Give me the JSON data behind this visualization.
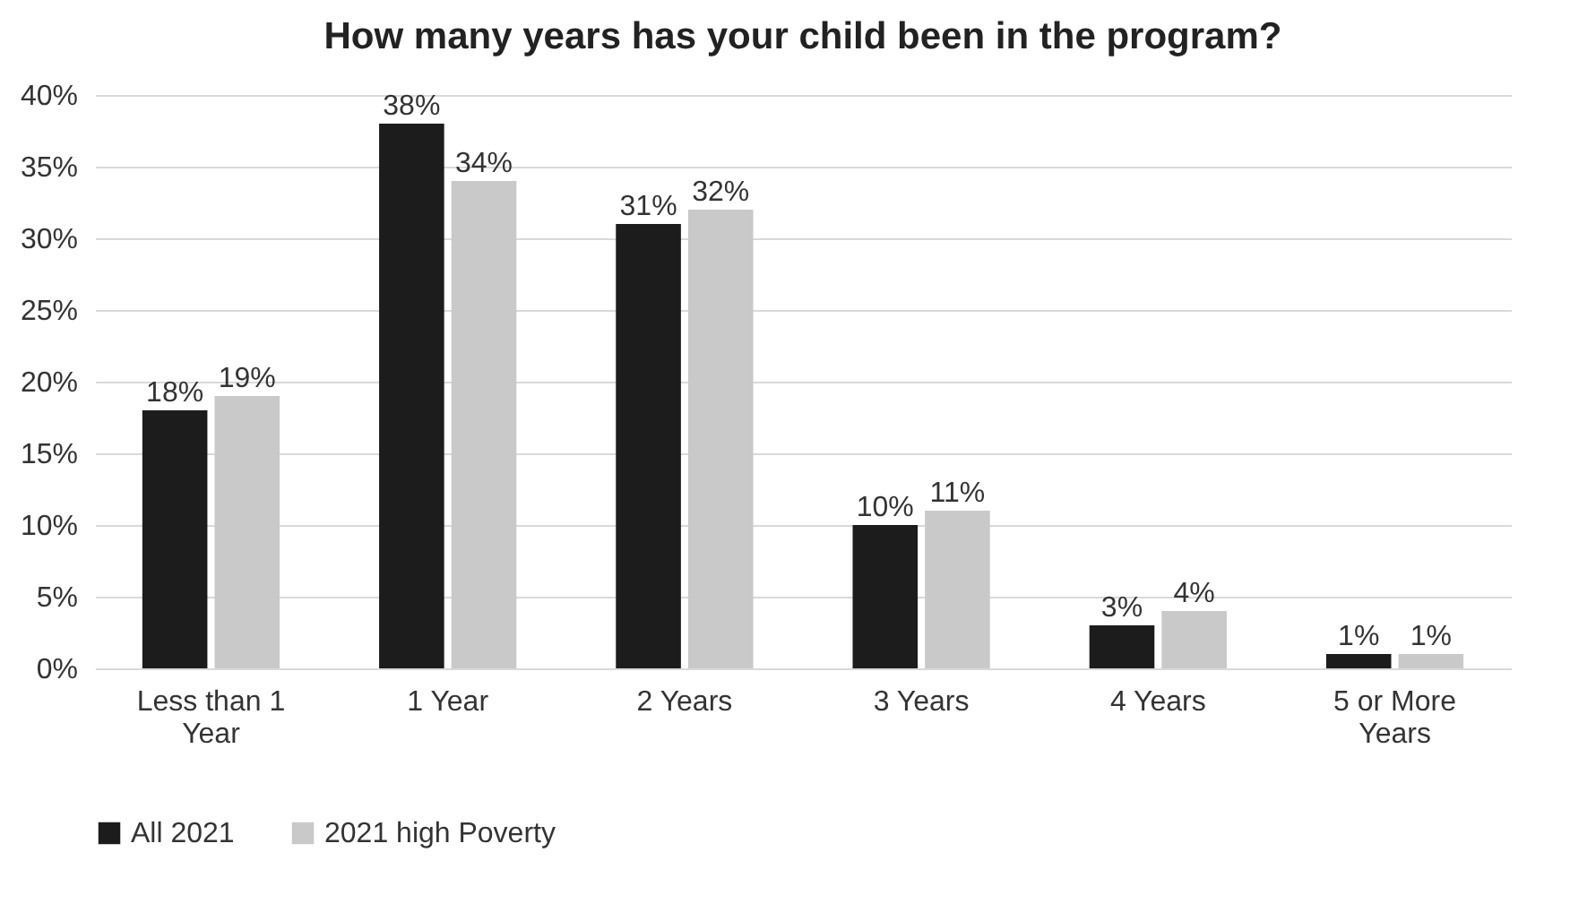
{
  "chart_data": {
    "type": "bar",
    "title": "How many years has your child been in the program?",
    "categories": [
      "Less than 1 Year",
      "1 Year",
      "2 Years",
      "3 Years",
      "4 Years",
      "5 or More Years"
    ],
    "series": [
      {
        "name": "All 2021",
        "color": "#1c1c1c",
        "values": [
          18,
          38,
          31,
          10,
          3,
          1
        ],
        "value_labels": [
          "18%",
          "38%",
          "31%",
          "10%",
          "3%",
          "1%"
        ]
      },
      {
        "name": "2021 high Poverty",
        "color": "#c9c9c9",
        "values": [
          19,
          34,
          32,
          11,
          4,
          1
        ],
        "value_labels": [
          "19%",
          "34%",
          "32%",
          "11%",
          "4%",
          "1%"
        ]
      }
    ],
    "ylim": [
      0,
      40
    ],
    "yticks": [
      {
        "value": 0,
        "label": "0%"
      },
      {
        "value": 5,
        "label": "5%"
      },
      {
        "value": 10,
        "label": "10%"
      },
      {
        "value": 15,
        "label": "15%"
      },
      {
        "value": 20,
        "label": "20%"
      },
      {
        "value": 25,
        "label": "25%"
      },
      {
        "value": 30,
        "label": "30%"
      },
      {
        "value": 35,
        "label": "35%"
      },
      {
        "value": 40,
        "label": "40%"
      }
    ],
    "grid": "y",
    "legend": "bottom"
  }
}
